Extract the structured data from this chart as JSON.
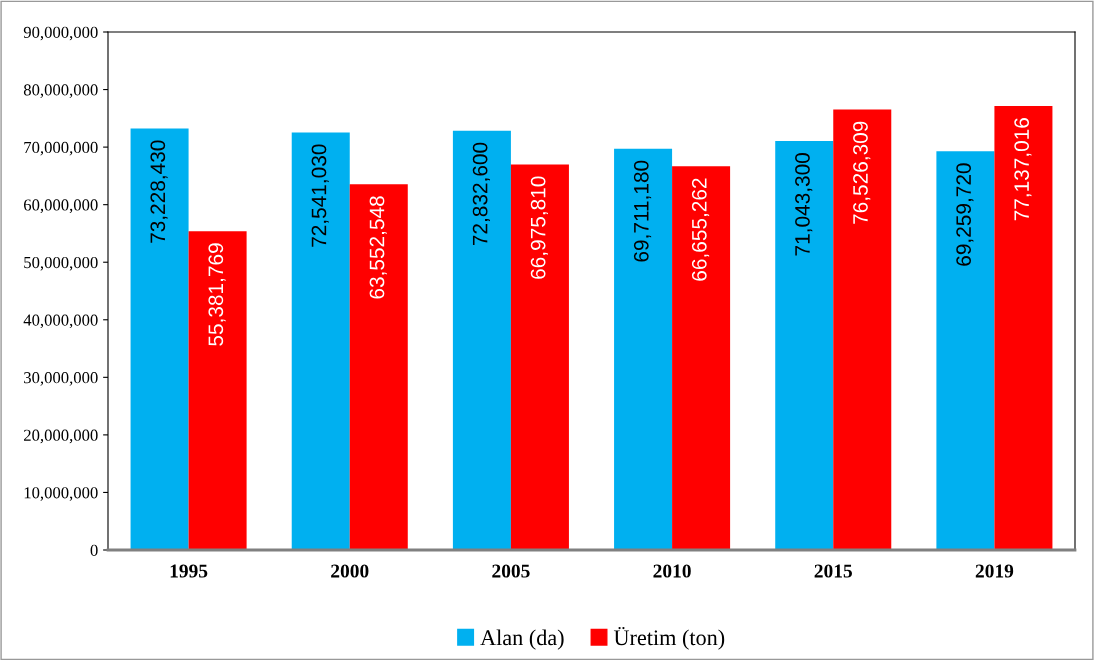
{
  "chart_data": {
    "type": "bar",
    "categories": [
      "1995",
      "2000",
      "2005",
      "2010",
      "2015",
      "2019"
    ],
    "series": [
      {
        "name": "Alan (da)",
        "color": "#00b0f0",
        "values": [
          73228430,
          72541030,
          72832600,
          69711180,
          71043300,
          69259720
        ],
        "value_labels": [
          "73,228,430",
          "72,541,030",
          "72,832,600",
          "69,711,180",
          "71,043,300",
          "69,259,720"
        ]
      },
      {
        "name": "Üretim (ton)",
        "color": "#ff0000",
        "values": [
          55381769,
          63552548,
          66975810,
          66655262,
          76526309,
          77137016
        ],
        "value_labels": [
          "55,381,769",
          "63,552,548",
          "66,975,810",
          "66,655,262",
          "76,526,309",
          "77,137,016"
        ]
      }
    ],
    "ylim": [
      0,
      90000000
    ],
    "yticks": [
      0,
      {
        "value": 10000000,
        "label": "10,000,000"
      },
      {
        "value": 20000000,
        "label": "20,000,000"
      },
      {
        "value": 30000000,
        "label": "30,000,000"
      },
      {
        "value": 40000000,
        "label": "40,000,000"
      },
      {
        "value": 50000000,
        "label": "50,000,000"
      },
      {
        "value": 60000000,
        "label": "60,000,000"
      },
      {
        "value": 70000000,
        "label": "70,000,000"
      },
      {
        "value": 80000000,
        "label": "80,000,000"
      },
      {
        "value": 90000000,
        "label": "90,000,000"
      }
    ],
    "legend": "bottom",
    "grid": false
  }
}
